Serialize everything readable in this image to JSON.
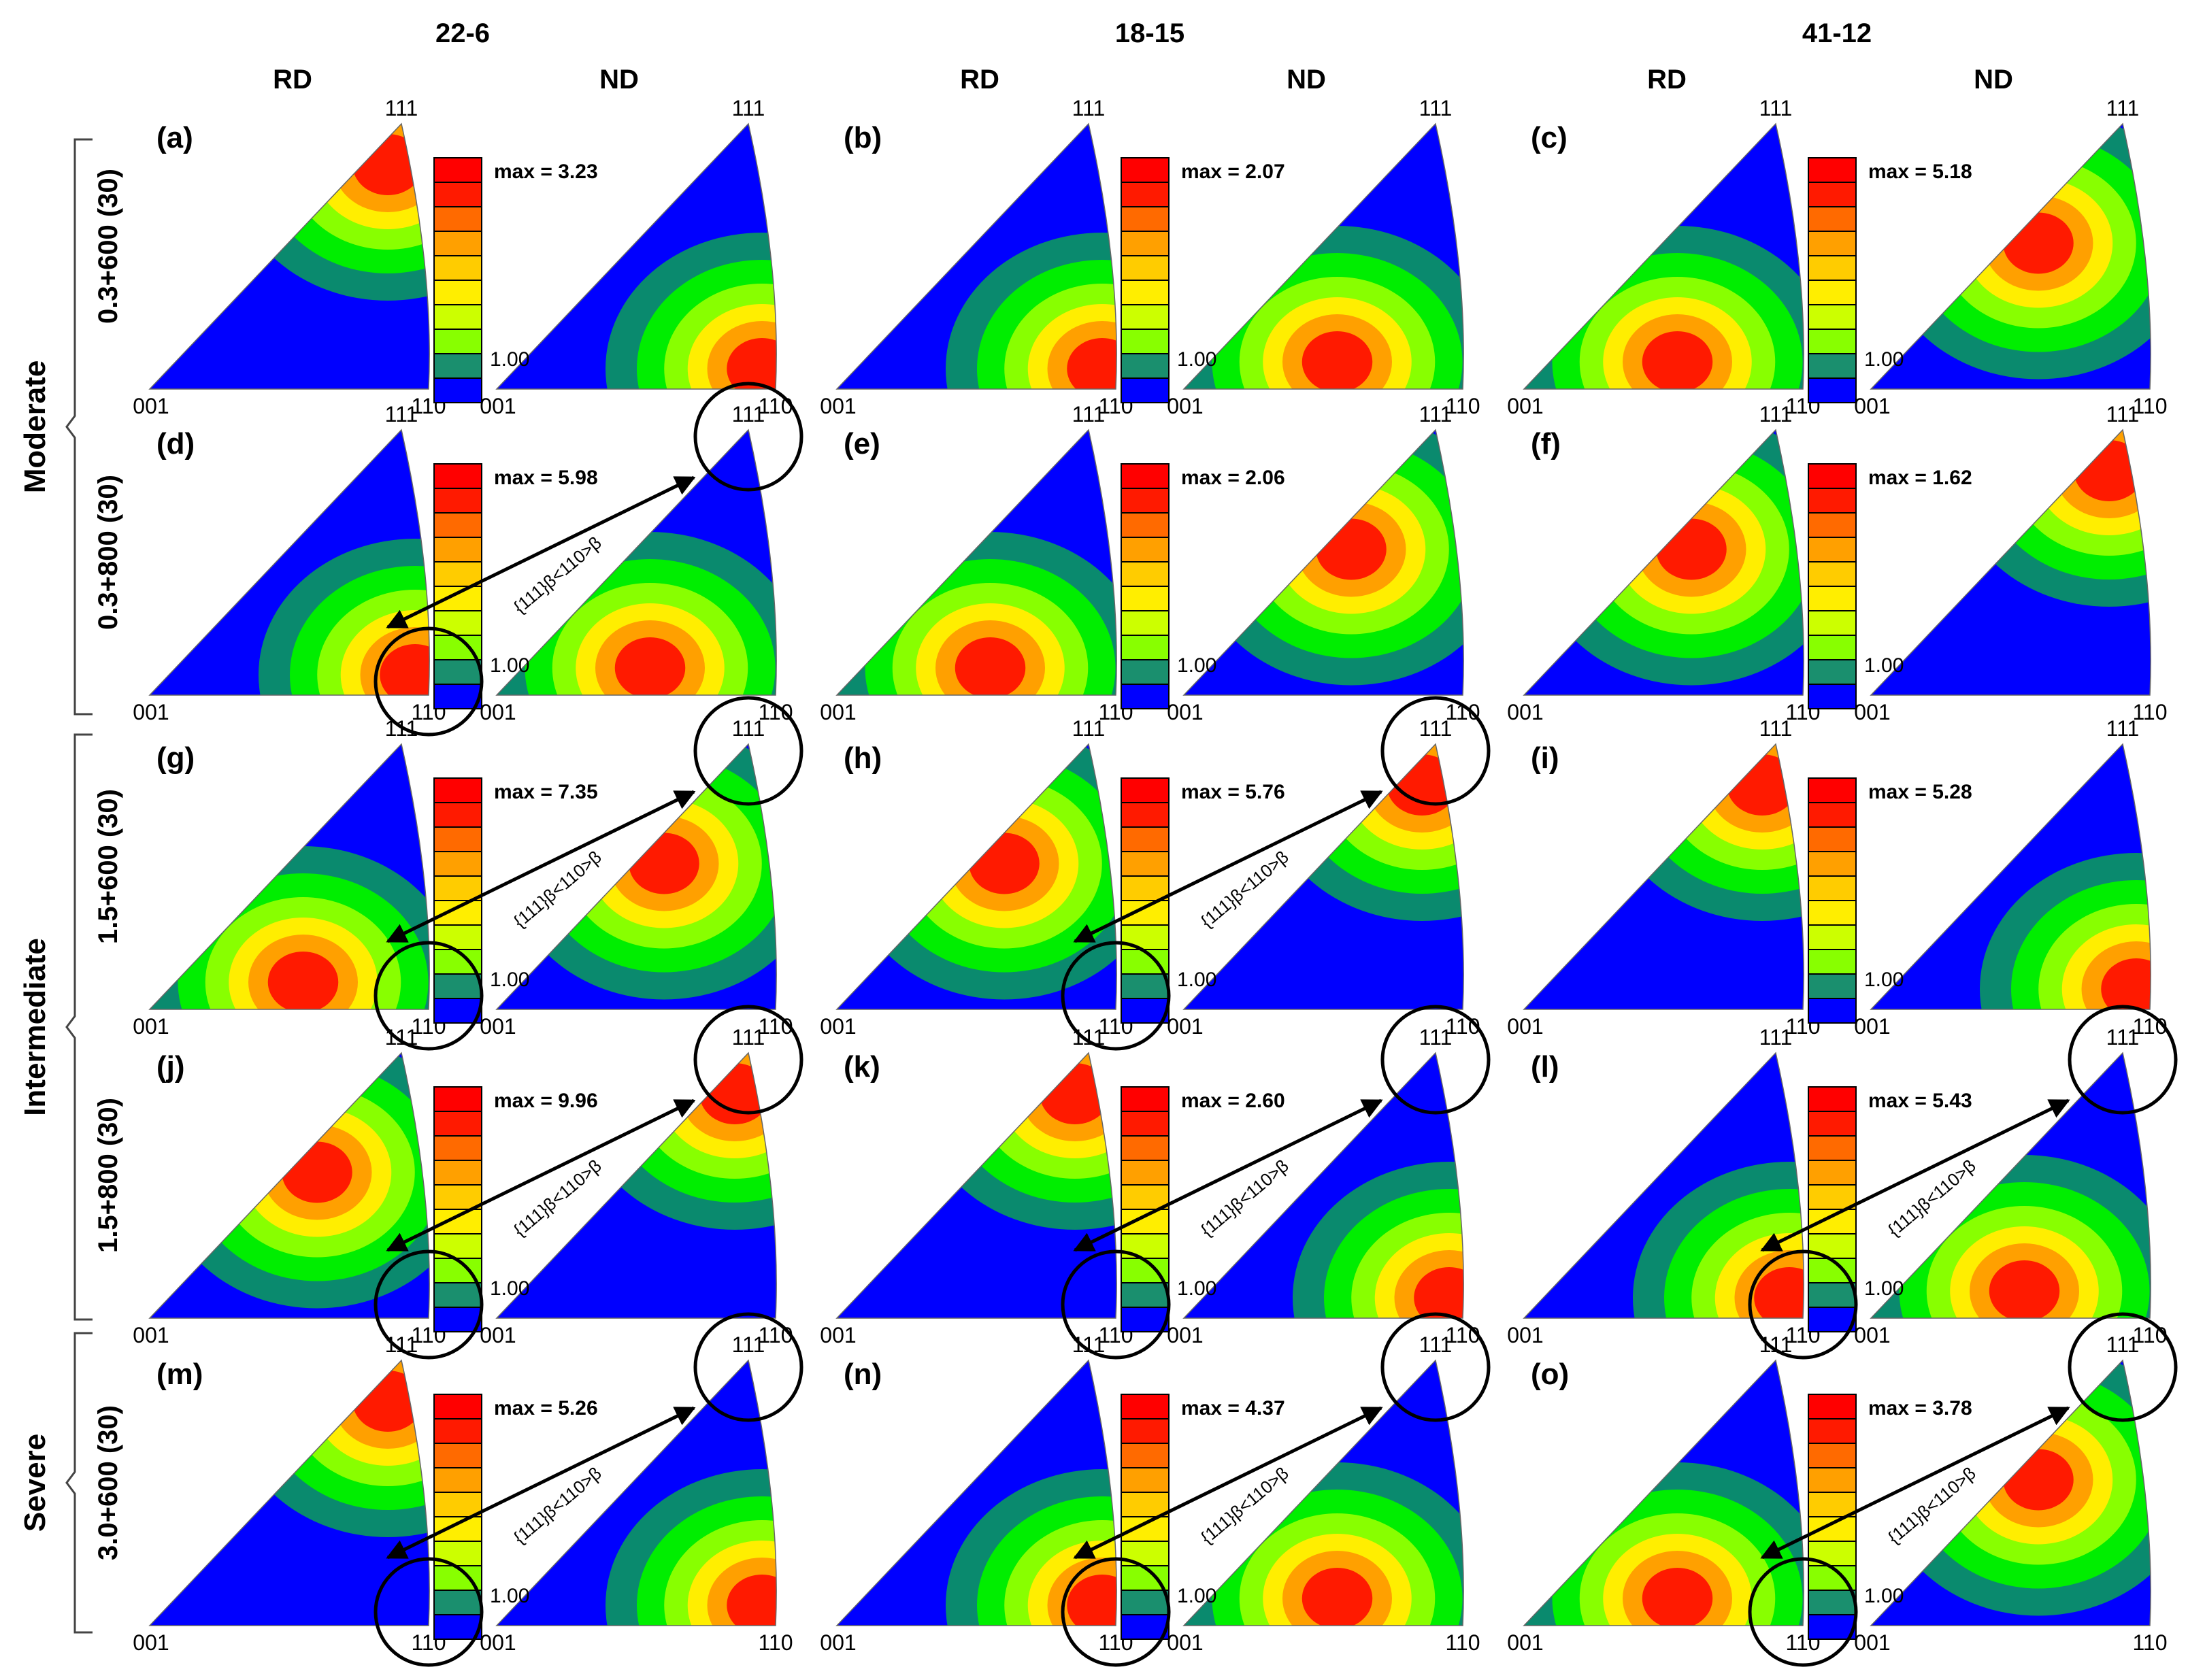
{
  "figure": {
    "alloys": [
      "22-6",
      "18-15",
      "41-12"
    ],
    "directions": [
      "RD",
      "ND"
    ],
    "pole_labels": {
      "corner_001": "001",
      "corner_110": "110",
      "corner_111": "111"
    },
    "scale_min_label": "1.00",
    "relation_label": "{111}β<110>β",
    "severity_groups": [
      {
        "label": "Moderate",
        "rows": [
          0,
          1
        ]
      },
      {
        "label": "Intermediate",
        "rows": [
          2,
          3
        ]
      },
      {
        "label": "Severe",
        "rows": [
          4
        ]
      }
    ],
    "rows": [
      {
        "condition": "0.3+600 (30)",
        "panels": [
          {
            "label": "(a)",
            "max": "max = 3.23",
            "highlight": false
          },
          {
            "label": "(b)",
            "max": "max = 2.07",
            "highlight": false
          },
          {
            "label": "(c)",
            "max": "max = 5.18",
            "highlight": false
          }
        ]
      },
      {
        "condition": "0.3+800 (30)",
        "panels": [
          {
            "label": "(d)",
            "max": "max = 5.98",
            "highlight": true
          },
          {
            "label": "(e)",
            "max": "max = 2.06",
            "highlight": false
          },
          {
            "label": "(f)",
            "max": "max = 1.62",
            "highlight": false
          }
        ]
      },
      {
        "condition": "1.5+600 (30)",
        "panels": [
          {
            "label": "(g)",
            "max": "max = 7.35",
            "highlight": true
          },
          {
            "label": "(h)",
            "max": "max = 5.76",
            "highlight": true
          },
          {
            "label": "(i)",
            "max": "max = 5.28",
            "highlight": false
          }
        ]
      },
      {
        "condition": "1.5+800 (30)",
        "panels": [
          {
            "label": "(j)",
            "max": "max = 9.96",
            "highlight": true
          },
          {
            "label": "(k)",
            "max": "max = 2.60",
            "highlight": true
          },
          {
            "label": "(l)",
            "max": "max = 5.43",
            "highlight": true
          }
        ]
      },
      {
        "condition": "3.0+600 (30)",
        "panels": [
          {
            "label": "(m)",
            "max": "max = 5.26",
            "highlight": true
          },
          {
            "label": "(n)",
            "max": "max = 4.37",
            "highlight": true
          },
          {
            "label": "(o)",
            "max": "max = 3.78",
            "highlight": true
          }
        ]
      }
    ]
  },
  "colors": {
    "scale": [
      "#0000ff",
      "#0a8a6e",
      "#00ee00",
      "#88ff00",
      "#ccff00",
      "#ffee00",
      "#ffcc00",
      "#ffa000",
      "#ff6a00",
      "#ff1a00",
      "#ff0000"
    ],
    "low": "#0000ff",
    "mid": "#1a8f6e",
    "green": "#22dd22",
    "high": "#ff1a00"
  }
}
